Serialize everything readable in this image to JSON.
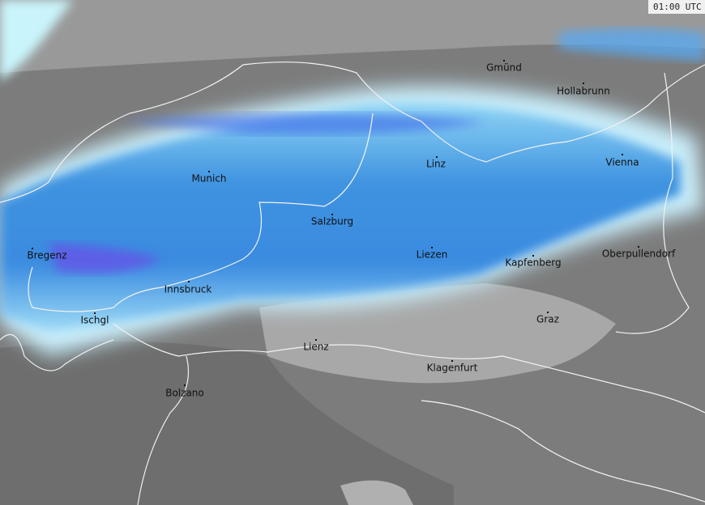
{
  "timestamp": "01:00 UTC",
  "cities": [
    "Gmünd",
    "Hollabrunn",
    "Linz",
    "Vienna",
    "Munich",
    "Salzburg",
    "Bregenz",
    "Liezen",
    "Kapfenberg",
    "Oberpullendorf",
    "Innsbruck",
    "Ischgl",
    "Graz",
    "Lienz",
    "Klagenfurt",
    "Bolzano"
  ]
}
